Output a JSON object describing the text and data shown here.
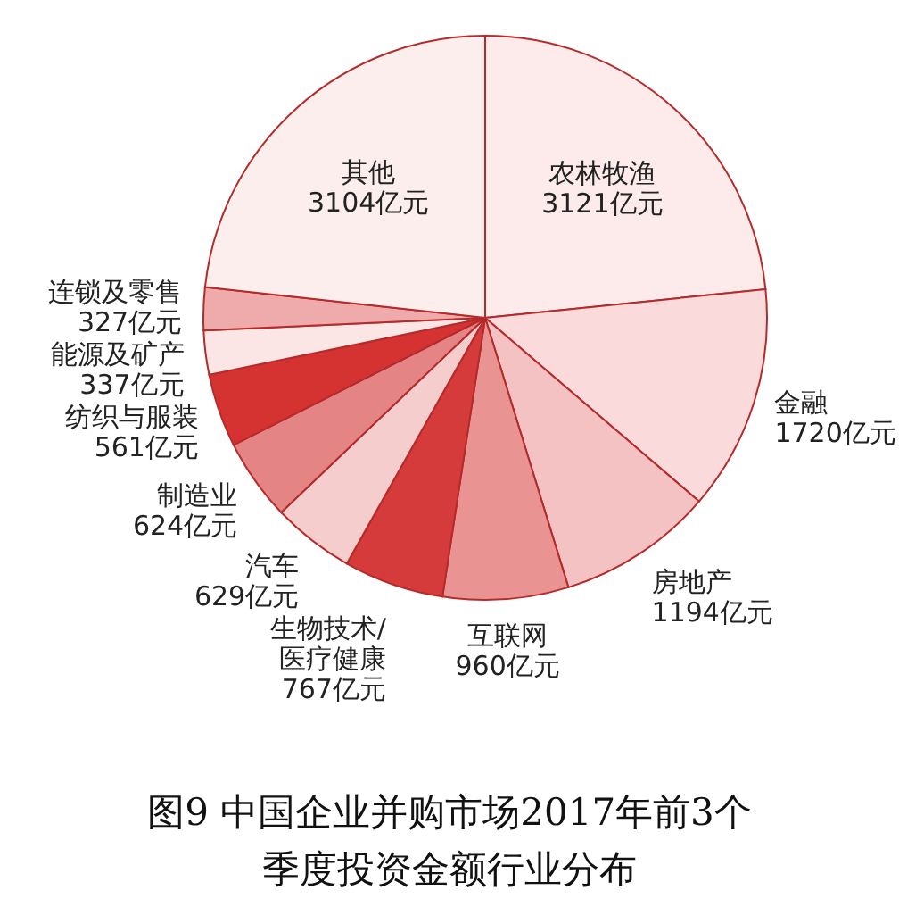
{
  "chart_data": {
    "type": "pie",
    "title": "图9 中国企业并购市场2017年前3个季度投资金额行业分布",
    "categories": [
      "农林牧渔",
      "金融",
      "房地产",
      "互联网",
      "生物技术/医疗健康",
      "汽车",
      "制造业",
      "纺织与服装",
      "能源及矿产",
      "连锁及零售",
      "其他"
    ],
    "values": [
      3121,
      1720,
      1194,
      960,
      767,
      629,
      624,
      561,
      337,
      327,
      3104
    ],
    "value_labels": [
      "3121亿元",
      "1720亿元",
      "1194亿元",
      "960亿元",
      "767亿元",
      "629亿元",
      "624亿元",
      "561亿元",
      "337亿元",
      "327亿元",
      "3104亿元"
    ],
    "colors": [
      "#fdeaea",
      "#fadada",
      "#f4c2c2",
      "#e99393",
      "#d63b3b",
      "#f5cdcd",
      "#e58484",
      "#d53232",
      "#fce5e5",
      "#efabab",
      "#fdeeee"
    ]
  }
}
